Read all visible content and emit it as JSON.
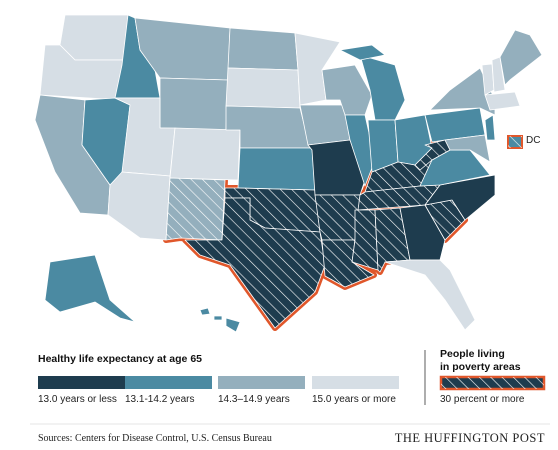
{
  "dc_label": "DC",
  "legend": {
    "title": "Healthy life expectancy at age 65",
    "items": [
      {
        "label": "13.0 years or less",
        "color": "#1e3c4e"
      },
      {
        "label": "13.1-14.2 years",
        "color": "#4b8aa2"
      },
      {
        "label": "14.3–14.9 years",
        "color": "#94afbd"
      },
      {
        "label": "15.0 years or more",
        "color": "#d6dee5"
      }
    ]
  },
  "poverty_legend": {
    "title": [
      "People living",
      "in poverty areas"
    ],
    "label": "30 percent or more",
    "color": "#e0572b"
  },
  "states": [
    {
      "class": 3,
      "poverty": false
    },
    {
      "class": 3,
      "poverty": false
    },
    {
      "class": 2,
      "poverty": false
    },
    {
      "class": 1,
      "poverty": false
    },
    {
      "class": 1,
      "poverty": false
    },
    {
      "class": 2,
      "poverty": false
    },
    {
      "class": 2,
      "poverty": false
    },
    {
      "class": 3,
      "poverty": false
    },
    {
      "class": 3,
      "poverty": false
    },
    {
      "class": 3,
      "poverty": false
    },
    {
      "class": 2,
      "poverty": true
    },
    {
      "class": 2,
      "poverty": false
    },
    {
      "class": 3,
      "poverty": false
    },
    {
      "class": 2,
      "poverty": false
    },
    {
      "class": 1,
      "poverty": false
    },
    {
      "class": 0,
      "poverty": true
    },
    {
      "class": 0,
      "poverty": true
    },
    {
      "class": 3,
      "poverty": false
    },
    {
      "class": 2,
      "poverty": false
    },
    {
      "class": 0,
      "poverty": false
    },
    {
      "class": 0,
      "poverty": true
    },
    {
      "class": 0,
      "poverty": true
    },
    {
      "class": 2,
      "poverty": false
    },
    {
      "class": 1,
      "poverty": false
    },
    {
      "class": 1,
      "poverty": false
    },
    {
      "class": 1,
      "poverty": false
    },
    {
      "class": 1,
      "poverty": false
    },
    {
      "class": 0,
      "poverty": true
    },
    {
      "class": 0,
      "poverty": true
    },
    {
      "class": 0,
      "poverty": true
    },
    {
      "class": 0,
      "poverty": true
    },
    {
      "class": 0,
      "poverty": false
    },
    {
      "class": 3,
      "poverty": false
    },
    {
      "class": 0,
      "poverty": true
    },
    {
      "class": 0,
      "poverty": false
    },
    {
      "class": 1,
      "poverty": false
    },
    {
      "class": 0,
      "poverty": true
    },
    {
      "class": 1,
      "poverty": false
    },
    {
      "class": 2,
      "poverty": false
    },
    {
      "class": 2,
      "poverty": false
    },
    {
      "class": 1,
      "poverty": false
    },
    {
      "class": 3,
      "poverty": false
    },
    {
      "class": 3,
      "poverty": false
    },
    {
      "class": 2,
      "poverty": false
    },
    {
      "class": 3,
      "poverty": false
    },
    {
      "class": 1,
      "poverty": false
    },
    {
      "class": 1,
      "poverty": false
    }
  ],
  "dc": {
    "class": 1,
    "poverty": true
  },
  "footer": {
    "source": "Sources: Centers for Disease Control, U.S. Census Bureau",
    "brand": "THE HUFFINGTON POST"
  }
}
